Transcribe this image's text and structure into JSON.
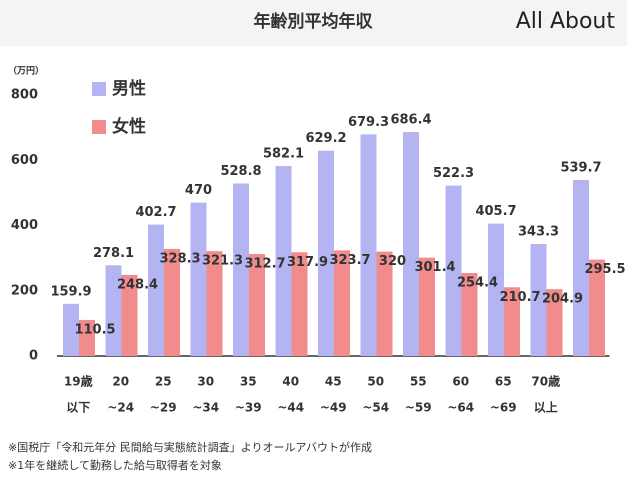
{
  "chart_data": {
    "type": "bar",
    "title": "年齢別平均年収",
    "logo": "All About",
    "y_unit": "（万円）",
    "categories": [
      [
        "19歳",
        "以下"
      ],
      [
        "20",
        "~24"
      ],
      [
        "25",
        "~29"
      ],
      [
        "30",
        "~34"
      ],
      [
        "35",
        "~39"
      ],
      [
        "40",
        "~44"
      ],
      [
        "45",
        "~49"
      ],
      [
        "50",
        "~54"
      ],
      [
        "55",
        "~59"
      ],
      [
        "60",
        "~64"
      ],
      [
        "65",
        "~69"
      ],
      [
        "70歳",
        "以上"
      ],
      null
    ],
    "series": [
      {
        "name": "男性",
        "color": "#b4b4f2",
        "values": [
          159.9,
          278.1,
          402.7,
          470,
          528.8,
          582.1,
          629.2,
          679.3,
          686.4,
          522.3,
          405.7,
          343.3,
          539.7
        ]
      },
      {
        "name": "女性",
        "color": "#f28b8b",
        "values": [
          110.5,
          248.4,
          328.3,
          321.3,
          312.7,
          317.9,
          323.7,
          320,
          301.4,
          254.4,
          210.7,
          204.9,
          295.5
        ]
      }
    ],
    "ylim": [
      0,
      800
    ],
    "yticks": [
      0,
      200,
      400,
      600,
      800
    ],
    "notes": [
      "※国税庁「令和元年分 民間給与実態統計調査」よりオールアバウトが作成",
      "※1年を継続して勤務した給与取得者を対象"
    ]
  }
}
